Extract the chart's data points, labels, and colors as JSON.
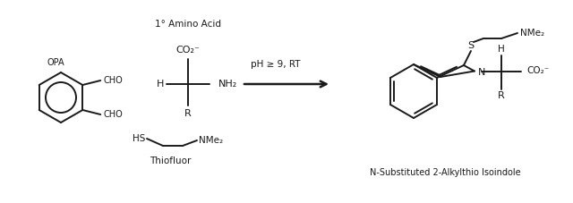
{
  "bg_color": "#ffffff",
  "line_color": "#1a1a1a",
  "text_color": "#1a1a1a",
  "figsize": [
    6.4,
    2.27
  ],
  "dpi": 100,
  "labels": {
    "OPA": "OPA",
    "CHO_top": "CHO",
    "CHO_bot": "CHO",
    "amino_acid_title": "1° Amino Acid",
    "CO2_minus": "CO₂⁻",
    "H_left": "H",
    "NH2": "NH₂",
    "R_amino": "R",
    "condition": "pH ≥ 9, RT",
    "S": "S",
    "NMe2_top": "NMe₂",
    "H_product": "H",
    "N": "N",
    "CO2_minus_product": "CO₂⁻",
    "R_product": "R",
    "HS": "HS",
    "NMe2_thiofluor": "NMe₂",
    "Thiofluor": "Thiofluor",
    "product_name": "N-Substituted 2-Alkylthio Isoindole"
  },
  "lw": 1.4,
  "arrow_lw": 1.8
}
